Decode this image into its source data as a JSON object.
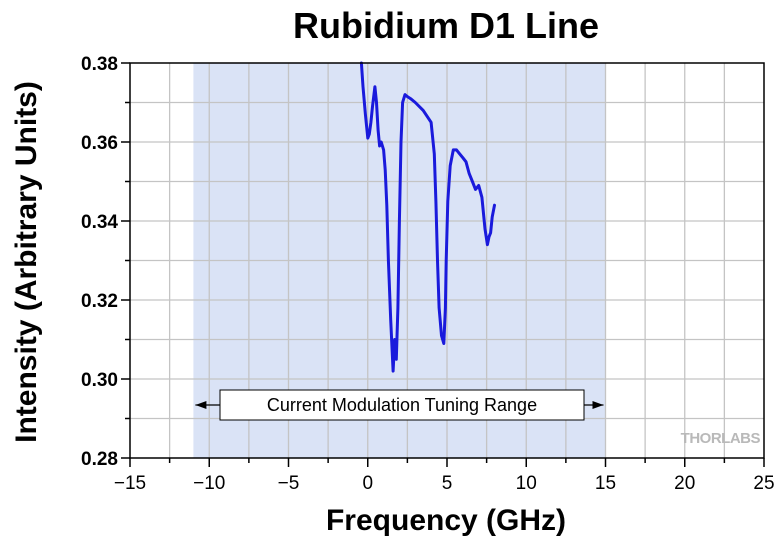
{
  "chart_data": {
    "type": "line",
    "title": "Rubidium D1 Line",
    "xlabel": "Frequency (GHz)",
    "ylabel": "Intensity (Arbitrary Units)",
    "xlim": [
      -15,
      25
    ],
    "ylim": [
      0.28,
      0.38
    ],
    "xticks": [
      -15,
      -10,
      -5,
      0,
      5,
      10,
      15,
      20,
      25
    ],
    "xtick_labels": [
      "−15",
      "−10",
      "−5",
      "0",
      "5",
      "10",
      "15",
      "20",
      "25"
    ],
    "yticks": [
      0.28,
      0.3,
      0.32,
      0.34,
      0.36,
      0.38
    ],
    "ytick_labels": [
      "0.28",
      "0.30",
      "0.32",
      "0.34",
      "0.36",
      "0.38"
    ],
    "grid": true,
    "shaded_region": {
      "x": [
        -11,
        15
      ],
      "color": "#dae3f6",
      "label": "Current Modulation Tuning Range"
    },
    "series": [
      {
        "color": "#1a1adc",
        "x": [
          -0.4,
          -0.3,
          -0.15,
          0.0,
          0.1,
          0.2,
          0.3,
          0.45,
          0.55,
          0.65,
          0.75,
          0.85,
          1.0,
          1.1,
          1.2,
          1.3,
          1.45,
          1.6,
          1.7,
          1.8,
          1.9,
          2.0,
          2.1,
          2.2,
          2.35,
          2.5,
          2.7,
          3.0,
          3.5,
          4.0,
          4.2,
          4.3,
          4.4,
          4.5,
          4.65,
          4.8,
          4.9,
          4.95,
          5.05,
          5.2,
          5.4,
          5.6,
          5.8,
          6.0,
          6.2,
          6.4,
          6.6,
          6.8,
          7.0,
          7.2,
          7.4,
          7.55,
          7.65,
          7.75,
          7.85,
          8.0
        ],
        "y": [
          0.38,
          0.374,
          0.367,
          0.361,
          0.362,
          0.365,
          0.369,
          0.374,
          0.37,
          0.363,
          0.359,
          0.36,
          0.358,
          0.353,
          0.344,
          0.33,
          0.315,
          0.302,
          0.31,
          0.305,
          0.318,
          0.34,
          0.36,
          0.37,
          0.372,
          0.3715,
          0.371,
          0.37,
          0.368,
          0.365,
          0.357,
          0.345,
          0.33,
          0.318,
          0.311,
          0.309,
          0.318,
          0.33,
          0.345,
          0.354,
          0.358,
          0.358,
          0.357,
          0.356,
          0.355,
          0.352,
          0.35,
          0.348,
          0.349,
          0.346,
          0.338,
          0.334,
          0.336,
          0.337,
          0.341,
          0.344
        ]
      }
    ]
  },
  "watermark": "THORLABS"
}
